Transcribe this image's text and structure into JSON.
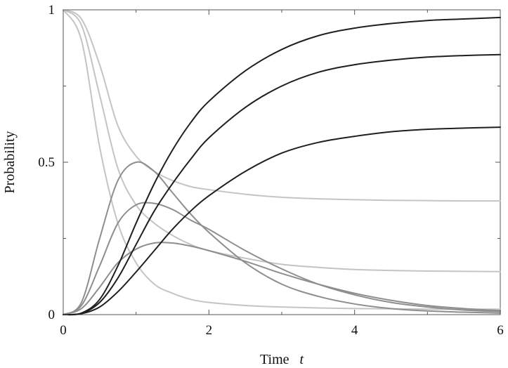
{
  "chart_data": {
    "type": "line",
    "xlabel": "Time",
    "xlabel_var": "t",
    "ylabel": "Probability",
    "xlim": [
      0,
      6
    ],
    "ylim": [
      0,
      1
    ],
    "x_ticks": [
      0,
      2,
      4,
      6
    ],
    "x_tick_labels": [
      "0",
      "2",
      "4",
      "6"
    ],
    "y_ticks": [
      0,
      0.5,
      1
    ],
    "y_tick_labels": [
      "0",
      "0.5",
      "1"
    ],
    "grid": false,
    "x": [
      0,
      0.25,
      0.5,
      0.75,
      1.0,
      1.25,
      1.5,
      1.75,
      2.0,
      2.5,
      3.0,
      3.5,
      4.0,
      4.5,
      5.0,
      5.5,
      6.0
    ],
    "series": [
      {
        "color": "#c4c4c4",
        "values": [
          1.0,
          0.97,
          0.82,
          0.62,
          0.52,
          0.47,
          0.44,
          0.42,
          0.41,
          0.395,
          0.385,
          0.38,
          0.377,
          0.375,
          0.374,
          0.373,
          0.373
        ]
      },
      {
        "color": "#c4c4c4",
        "values": [
          1.0,
          0.95,
          0.72,
          0.48,
          0.36,
          0.3,
          0.26,
          0.23,
          0.21,
          0.185,
          0.165,
          0.155,
          0.148,
          0.145,
          0.143,
          0.142,
          0.141
        ]
      },
      {
        "color": "#c4c4c4",
        "values": [
          1.0,
          0.9,
          0.55,
          0.3,
          0.17,
          0.1,
          0.07,
          0.05,
          0.04,
          0.03,
          0.025,
          0.022,
          0.02,
          0.019,
          0.018,
          0.018,
          0.018
        ]
      },
      {
        "color": "#8e8e8e",
        "values": [
          0.0,
          0.04,
          0.25,
          0.44,
          0.5,
          0.47,
          0.4,
          0.33,
          0.27,
          0.17,
          0.1,
          0.06,
          0.035,
          0.02,
          0.012,
          0.008,
          0.005
        ]
      },
      {
        "color": "#8e8e8e",
        "values": [
          0.0,
          0.03,
          0.16,
          0.3,
          0.36,
          0.365,
          0.345,
          0.31,
          0.28,
          0.21,
          0.15,
          0.1,
          0.065,
          0.04,
          0.025,
          0.015,
          0.01
        ]
      },
      {
        "color": "#8e8e8e",
        "values": [
          0.0,
          0.02,
          0.09,
          0.17,
          0.215,
          0.235,
          0.235,
          0.225,
          0.21,
          0.175,
          0.135,
          0.1,
          0.07,
          0.047,
          0.03,
          0.02,
          0.013
        ]
      },
      {
        "color": "#1f1f1f",
        "values": [
          0.0,
          0.005,
          0.05,
          0.16,
          0.3,
          0.43,
          0.54,
          0.63,
          0.7,
          0.8,
          0.87,
          0.915,
          0.94,
          0.955,
          0.965,
          0.97,
          0.975
        ]
      },
      {
        "color": "#1f1f1f",
        "values": [
          0.0,
          0.004,
          0.04,
          0.12,
          0.23,
          0.34,
          0.43,
          0.51,
          0.58,
          0.68,
          0.75,
          0.795,
          0.82,
          0.835,
          0.845,
          0.85,
          0.853
        ]
      },
      {
        "color": "#1f1f1f",
        "values": [
          0.0,
          0.003,
          0.025,
          0.075,
          0.14,
          0.21,
          0.28,
          0.34,
          0.39,
          0.47,
          0.53,
          0.565,
          0.585,
          0.6,
          0.608,
          0.612,
          0.615
        ]
      }
    ]
  }
}
